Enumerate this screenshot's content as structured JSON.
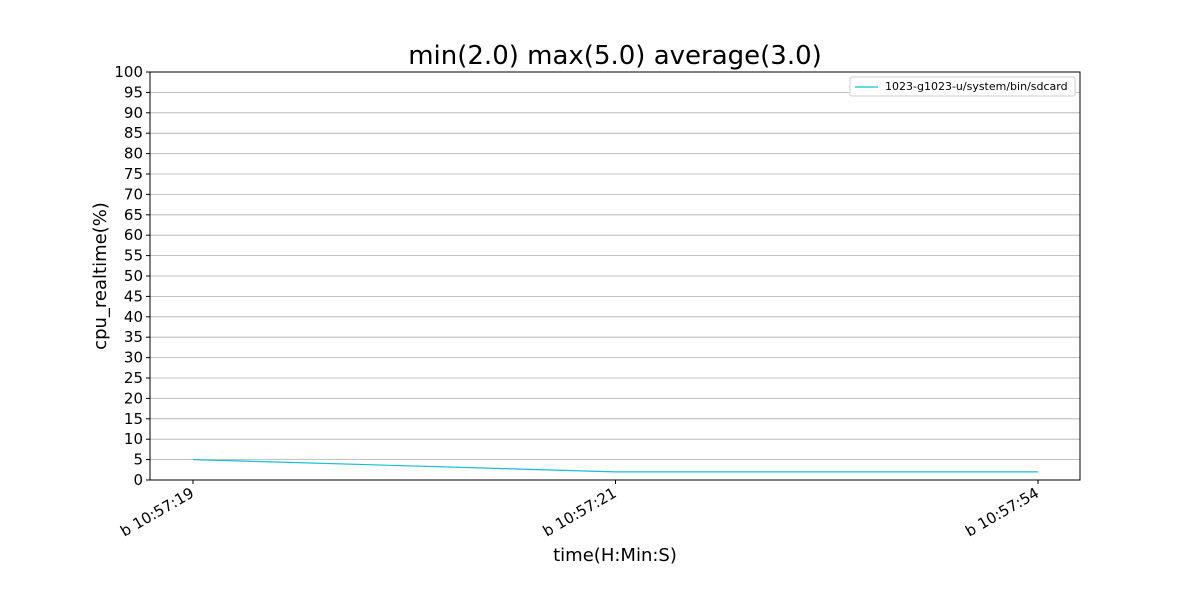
{
  "chart_data": {
    "type": "line",
    "title": "min(2.0) max(5.0) average(3.0)",
    "xlabel": "time(H:Min:S)",
    "ylabel": "cpu_realtime(%)",
    "categories": [
      "b 10:57:19",
      "b 10:57:21",
      "b 10:57:54"
    ],
    "series": [
      {
        "name": "1023-g1023-u/system/bin/sdcard",
        "values": [
          5,
          2,
          2
        ],
        "color": "#17becf"
      }
    ],
    "ylim": [
      0,
      100
    ],
    "yticks": [
      0,
      5,
      10,
      15,
      20,
      25,
      30,
      35,
      40,
      45,
      50,
      55,
      60,
      65,
      70,
      75,
      80,
      85,
      90,
      95,
      100
    ],
    "grid": "horizontal",
    "legend_position": "top-right"
  }
}
